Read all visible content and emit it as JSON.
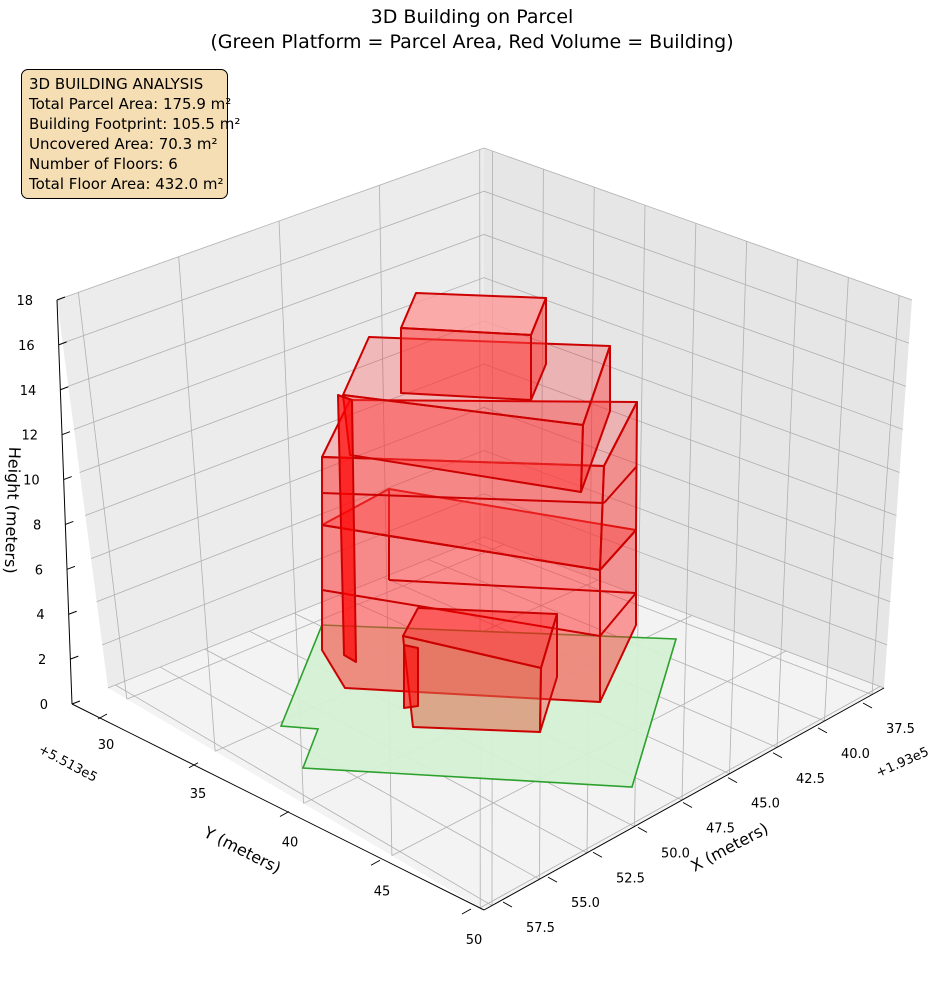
{
  "title_line1": "3D Building on Parcel",
  "title_line2": "(Green Platform = Parcel Area, Red Volume = Building)",
  "info_box": {
    "heading": "3D BUILDING ANALYSIS",
    "lines": [
      "Total Parcel Area: 175.9 m²",
      "Building Footprint: 105.5 m²",
      "Uncovered Area: 70.3 m²",
      "Number of Floors: 6",
      "Total Floor Area: 432.0 m²"
    ]
  },
  "colors": {
    "parcel_fill": "#d4f0d4",
    "parcel_edge": "#2ca02c",
    "building_fill": "#ff0000",
    "building_edge": "#cc0000",
    "pane_left": "#ececec",
    "pane_right": "#e6e6e6",
    "pane_floor": "#f3f3f3",
    "grid": "#b0b0b0"
  },
  "chart_data": {
    "type": "3d-box",
    "xlabel": "X (meters)",
    "ylabel": "Y (meters)",
    "zlabel": "Height (meters)",
    "x_offset_label": "+1.93e5",
    "y_offset_label": "+5.513e5",
    "x_ticks": [
      "37.5",
      "40.0",
      "42.5",
      "45.0",
      "47.5",
      "50.0",
      "52.5",
      "55.0",
      "57.5"
    ],
    "y_ticks": [
      "30",
      "35",
      "40",
      "45",
      "50"
    ],
    "z_ticks": [
      "0",
      "2",
      "4",
      "6",
      "8",
      "10",
      "12",
      "14",
      "16",
      "18"
    ],
    "parcel_area_m2": 175.9,
    "building_footprint_m2": 105.5,
    "floors": 6,
    "total_floor_area_m2": 432.0,
    "z_range": [
      0,
      18
    ]
  }
}
